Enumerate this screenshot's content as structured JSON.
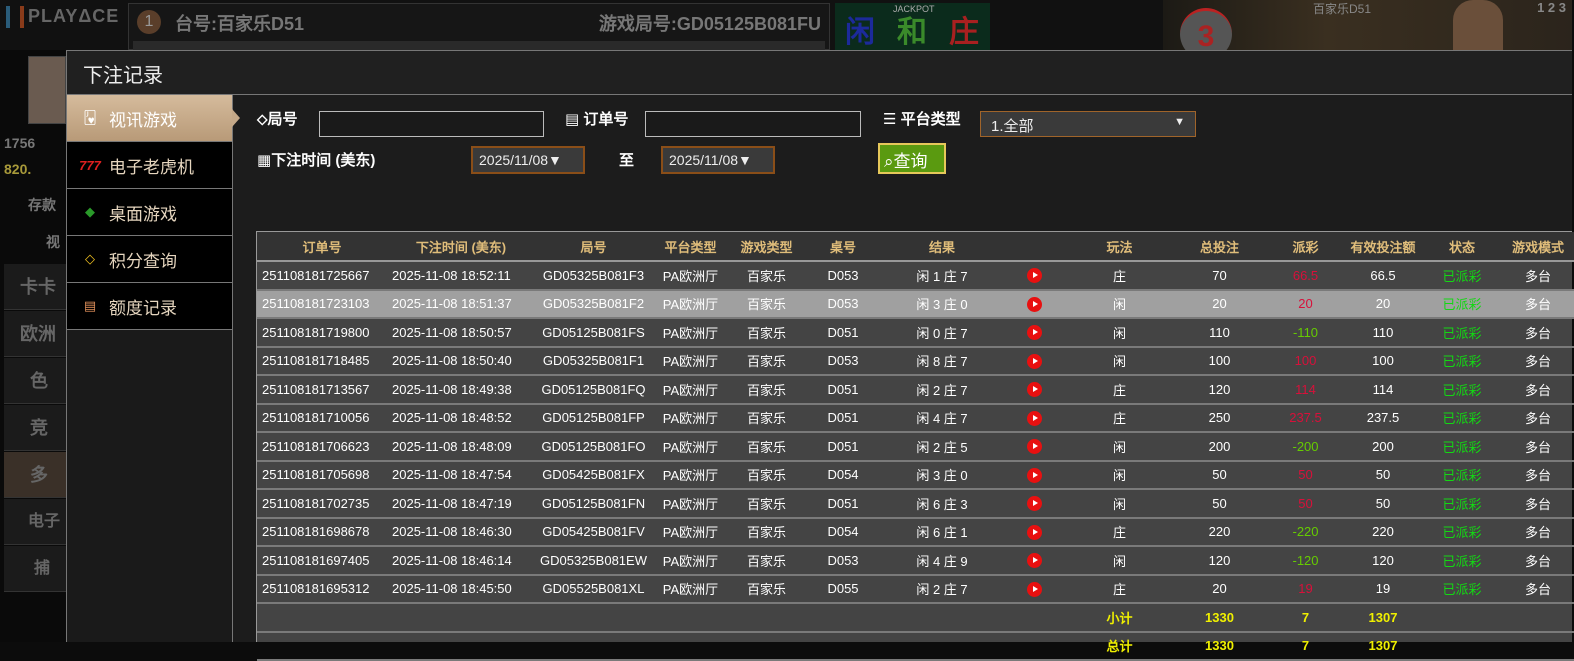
{
  "background": {
    "logo": "PLAYΔCE",
    "table_number": "1",
    "table_name": "台号:百家乐D51",
    "round_id": "游戏局号:GD05125B081FU",
    "bet_board": [
      "闲",
      "和",
      "庄"
    ],
    "jackpot": "JACKPOT",
    "countdown": "3",
    "video_label": "百家乐D51",
    "video_nums": "1 2 3",
    "sidebar": {
      "stats": [
        "1756",
        "820.",
        "存款",
        "视"
      ],
      "menus": [
        "卡卡",
        "欧洲",
        "色",
        "竞",
        "多",
        "电子",
        "捕"
      ]
    }
  },
  "modal": {
    "title": "下注记录",
    "nav": [
      {
        "label": "视讯游戏",
        "icon": "playing-cards-icon",
        "active": true
      },
      {
        "label": "电子老虎机",
        "icon": "slot-777-icon"
      },
      {
        "label": "桌面游戏",
        "icon": "chips-icon"
      },
      {
        "label": "积分查询",
        "icon": "diamond-icon"
      },
      {
        "label": "额度记录",
        "icon": "document-icon"
      }
    ],
    "filters": {
      "round_label": "局号",
      "round_value": "",
      "order_label": "订单号",
      "order_value": "",
      "platform_label": "平台类型",
      "platform_value": "1.全部",
      "time_label": "下注时间 (美东)",
      "date_from": "2025/11/08▼",
      "to_label": "至",
      "date_to": "2025/11/08▼",
      "query_label": "查询"
    },
    "table": {
      "headers": [
        "订单号",
        "下注时间 (美东)",
        "局号",
        "平台类型",
        "游戏类型",
        "桌号",
        "结果",
        "",
        "玩法",
        "总投注",
        "派彩",
        "有效投注额",
        "状态",
        "游戏模式"
      ],
      "rows": [
        [
          "251108181725667",
          "2025-11-08 18:52:11",
          "GD05325B081F3",
          "PA欧洲厅",
          "百家乐",
          "D053",
          "闲 1 庄 7",
          "庄",
          "70",
          "66.5",
          "66.5",
          "已派彩",
          "多台"
        ],
        [
          "251108181723103",
          "2025-11-08 18:51:37",
          "GD05325B081F2",
          "PA欧洲厅",
          "百家乐",
          "D053",
          "闲 3 庄 0",
          "闲",
          "20",
          "20",
          "20",
          "已派彩",
          "多台"
        ],
        [
          "251108181719800",
          "2025-11-08 18:50:57",
          "GD05125B081FS",
          "PA欧洲厅",
          "百家乐",
          "D051",
          "闲 0 庄 7",
          "闲",
          "110",
          "-110",
          "110",
          "已派彩",
          "多台"
        ],
        [
          "251108181718485",
          "2025-11-08 18:50:40",
          "GD05325B081F1",
          "PA欧洲厅",
          "百家乐",
          "D053",
          "闲 8 庄 7",
          "闲",
          "100",
          "100",
          "100",
          "已派彩",
          "多台"
        ],
        [
          "251108181713567",
          "2025-11-08 18:49:38",
          "GD05125B081FQ",
          "PA欧洲厅",
          "百家乐",
          "D051",
          "闲 2 庄 7",
          "庄",
          "120",
          "114",
          "114",
          "已派彩",
          "多台"
        ],
        [
          "251108181710056",
          "2025-11-08 18:48:52",
          "GD05125B081FP",
          "PA欧洲厅",
          "百家乐",
          "D051",
          "闲 4 庄 7",
          "庄",
          "250",
          "237.5",
          "237.5",
          "已派彩",
          "多台"
        ],
        [
          "251108181706623",
          "2025-11-08 18:48:09",
          "GD05125B081FO",
          "PA欧洲厅",
          "百家乐",
          "D051",
          "闲 2 庄 5",
          "闲",
          "200",
          "-200",
          "200",
          "已派彩",
          "多台"
        ],
        [
          "251108181705698",
          "2025-11-08 18:47:54",
          "GD05425B081FX",
          "PA欧洲厅",
          "百家乐",
          "D054",
          "闲 3 庄 0",
          "闲",
          "50",
          "50",
          "50",
          "已派彩",
          "多台"
        ],
        [
          "251108181702735",
          "2025-11-08 18:47:19",
          "GD05125B081FN",
          "PA欧洲厅",
          "百家乐",
          "D051",
          "闲 6 庄 3",
          "闲",
          "50",
          "50",
          "50",
          "已派彩",
          "多台"
        ],
        [
          "251108181698678",
          "2025-11-08 18:46:30",
          "GD05425B081FV",
          "PA欧洲厅",
          "百家乐",
          "D054",
          "闲 6 庄 1",
          "庄",
          "220",
          "-220",
          "220",
          "已派彩",
          "多台"
        ],
        [
          "251108181697405",
          "2025-11-08 18:46:14",
          "GD05325B081EW",
          "PA欧洲厅",
          "百家乐",
          "D053",
          "闲 4 庄 9",
          "闲",
          "120",
          "-120",
          "120",
          "已派彩",
          "多台"
        ],
        [
          "251108181695312",
          "2025-11-08 18:45:50",
          "GD05525B081XL",
          "PA欧洲厅",
          "百家乐",
          "D055",
          "闲 2 庄 7",
          "庄",
          "20",
          "19",
          "19",
          "已派彩",
          "多台"
        ]
      ],
      "highlighted_row": 1,
      "subtotal": {
        "label": "小计",
        "total_bet": "1330",
        "payout": "7",
        "valid_bet": "1307"
      },
      "total": {
        "label": "总计",
        "total_bet": "1330",
        "payout": "7",
        "valid_bet": "1307"
      }
    }
  },
  "colors": {
    "positive": "#d8103a",
    "negative": "#66cc00",
    "status": "#13d813",
    "header_text": "#e0bd7a",
    "sum_text": "#f0f000",
    "query_button": "#5a9a10"
  }
}
